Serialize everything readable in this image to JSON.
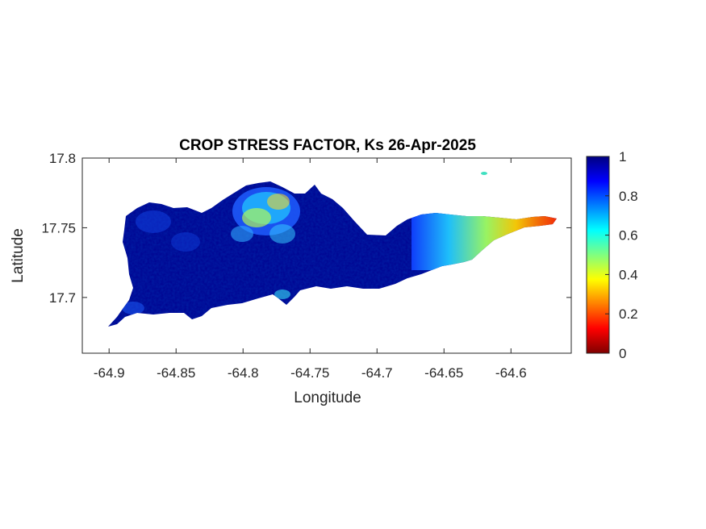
{
  "chart_data": {
    "type": "heatmap",
    "title": "CROP STRESS FACTOR, Ks  26-Apr-2025",
    "xlabel": "Longitude",
    "ylabel": "Latitude",
    "xlim": [
      -64.92,
      -64.555
    ],
    "ylim": [
      17.66,
      17.8
    ],
    "xticks": [
      -64.9,
      -64.85,
      -64.8,
      -64.75,
      -64.7,
      -64.65,
      -64.6
    ],
    "xtick_labels": [
      "-64.9",
      "-64.85",
      "-64.8",
      "-64.75",
      "-64.7",
      "-64.65",
      "-64.6"
    ],
    "yticks": [
      17.7,
      17.75,
      17.8
    ],
    "ytick_labels": [
      "17.7",
      "17.75",
      "17.8"
    ],
    "colormap": "jet",
    "clim": [
      0,
      1
    ],
    "colorbar_ticks": [
      0,
      0.2,
      0.4,
      0.6,
      0.8,
      1
    ],
    "colorbar_tick_labels": [
      "0",
      "0.2",
      "0.4",
      "0.6",
      "0.8",
      "1"
    ],
    "regions": [
      {
        "lon_range": [
          -64.9,
          -64.66
        ],
        "lat_range": [
          17.68,
          17.78
        ],
        "ks": 1.0
      },
      {
        "lon_range": [
          -64.81,
          -64.765
        ],
        "lat_range": [
          17.72,
          17.78
        ],
        "ks": 0.7
      },
      {
        "lon_range": [
          -64.65,
          -64.625
        ],
        "lat_range": [
          17.73,
          17.76
        ],
        "ks": 0.65
      },
      {
        "lon_range": [
          -64.625,
          -64.6
        ],
        "lat_range": [
          17.74,
          17.76
        ],
        "ks": 0.4
      },
      {
        "lon_range": [
          -64.6,
          -64.57
        ],
        "lat_range": [
          17.745,
          17.755
        ],
        "ks": 0.25
      }
    ],
    "grid": false
  }
}
